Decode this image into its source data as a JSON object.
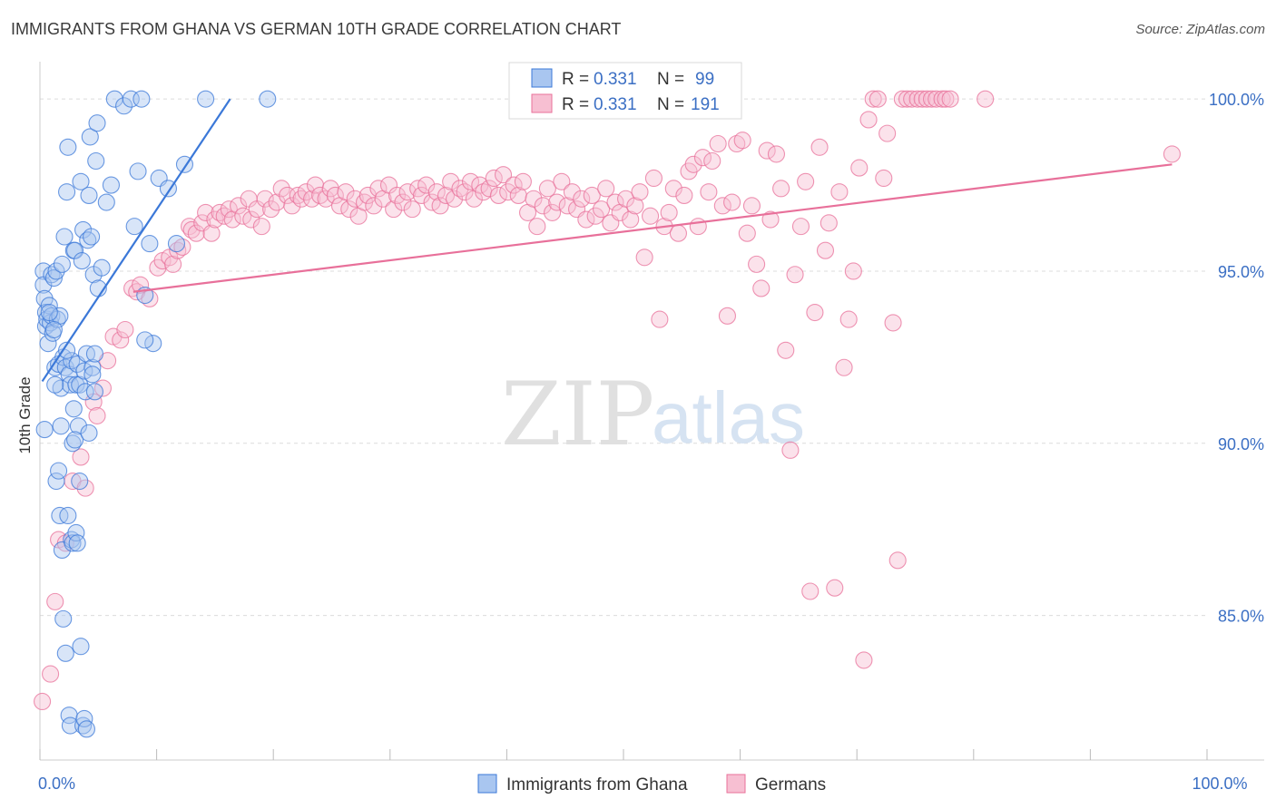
{
  "title": "IMMIGRANTS FROM GHANA VS GERMAN 10TH GRADE CORRELATION CHART",
  "source": "Source: ZipAtlas.com",
  "watermark": {
    "zip": "ZIP",
    "atlas": "atlas"
  },
  "legend": {
    "r_label": "R =",
    "n_label": "N =",
    "rows": [
      {
        "r": "0.331",
        "n": "99",
        "color": "#7aa7e6"
      },
      {
        "r": "0.331",
        "n": "191",
        "color": "#f2a0bc"
      }
    ]
  },
  "chart_data": {
    "type": "scatter",
    "title": "IMMIGRANTS FROM GHANA VS GERMAN 10TH GRADE CORRELATION CHART",
    "xlabel": "",
    "ylabel": "10th Grade",
    "xlim": [
      0,
      100
    ],
    "ylim": [
      80.8,
      100.9
    ],
    "x_tick_labels": [
      {
        "value": 0,
        "label": "0.0%"
      },
      {
        "value": 100,
        "label": "100.0%"
      }
    ],
    "y_ticks": [
      {
        "value": 85,
        "label": "85.0%"
      },
      {
        "value": 90,
        "label": "90.0%"
      },
      {
        "value": 95,
        "label": "95.0%"
      },
      {
        "value": 100,
        "label": "100.0%"
      }
    ],
    "grid": true,
    "legend_placement": "top-center",
    "series": [
      {
        "name": "Immigrants from Ghana",
        "color": "#3b78d8",
        "fill": "#a9c6f0",
        "r": 0.331,
        "n": 99,
        "trend": {
          "x": [
            0.2,
            16.3
          ],
          "y": [
            91.8,
            100.0
          ]
        },
        "points": [
          [
            0.3,
            95.0
          ],
          [
            0.3,
            94.6
          ],
          [
            0.4,
            94.2
          ],
          [
            0.5,
            93.8
          ],
          [
            0.5,
            93.4
          ],
          [
            0.6,
            93.6
          ],
          [
            0.7,
            92.9
          ],
          [
            0.8,
            94.0
          ],
          [
            0.9,
            93.5
          ],
          [
            1.0,
            94.9
          ],
          [
            1.0,
            93.7
          ],
          [
            1.1,
            93.2
          ],
          [
            1.2,
            94.8
          ],
          [
            1.3,
            92.2
          ],
          [
            1.4,
            95.0
          ],
          [
            1.5,
            93.6
          ],
          [
            1.6,
            92.3
          ],
          [
            1.7,
            93.7
          ],
          [
            1.8,
            91.6
          ],
          [
            1.9,
            95.2
          ],
          [
            2.0,
            92.5
          ],
          [
            2.1,
            96.0
          ],
          [
            2.2,
            92.2
          ],
          [
            2.3,
            97.3
          ],
          [
            2.4,
            98.6
          ],
          [
            2.5,
            92.0
          ],
          [
            2.6,
            91.7
          ],
          [
            2.7,
            92.4
          ],
          [
            2.8,
            90.0
          ],
          [
            2.9,
            95.6
          ],
          [
            3.0,
            95.6
          ],
          [
            3.1,
            91.7
          ],
          [
            3.2,
            92.3
          ],
          [
            3.3,
            90.5
          ],
          [
            3.4,
            91.7
          ],
          [
            3.5,
            97.6
          ],
          [
            3.6,
            95.3
          ],
          [
            3.7,
            96.2
          ],
          [
            3.8,
            92.1
          ],
          [
            3.9,
            91.5
          ],
          [
            4.0,
            92.6
          ],
          [
            4.1,
            95.9
          ],
          [
            4.2,
            97.2
          ],
          [
            4.3,
            98.9
          ],
          [
            4.4,
            96.0
          ],
          [
            4.5,
            92.2
          ],
          [
            4.6,
            94.9
          ],
          [
            4.7,
            92.6
          ],
          [
            4.8,
            98.2
          ],
          [
            4.9,
            99.3
          ],
          [
            0.4,
            90.4
          ],
          [
            0.8,
            93.8
          ],
          [
            1.2,
            93.3
          ],
          [
            1.3,
            91.7
          ],
          [
            1.4,
            88.9
          ],
          [
            1.6,
            89.2
          ],
          [
            1.7,
            87.9
          ],
          [
            1.8,
            90.5
          ],
          [
            1.9,
            86.9
          ],
          [
            2.0,
            84.9
          ],
          [
            2.2,
            83.9
          ],
          [
            2.3,
            92.7
          ],
          [
            2.4,
            87.9
          ],
          [
            2.5,
            82.1
          ],
          [
            2.6,
            81.8
          ],
          [
            2.7,
            87.2
          ],
          [
            2.8,
            87.1
          ],
          [
            2.9,
            91.0
          ],
          [
            3.0,
            90.1
          ],
          [
            3.1,
            87.4
          ],
          [
            3.2,
            87.1
          ],
          [
            3.4,
            88.9
          ],
          [
            3.5,
            84.1
          ],
          [
            3.7,
            81.8
          ],
          [
            3.8,
            82.0
          ],
          [
            4.0,
            81.7
          ],
          [
            4.2,
            90.3
          ],
          [
            4.5,
            92.0
          ],
          [
            4.7,
            91.5
          ],
          [
            5.0,
            94.5
          ],
          [
            5.3,
            95.1
          ],
          [
            5.7,
            97.0
          ],
          [
            6.1,
            97.5
          ],
          [
            6.4,
            100.0
          ],
          [
            7.2,
            99.8
          ],
          [
            7.8,
            100.0
          ],
          [
            8.1,
            96.3
          ],
          [
            8.4,
            97.9
          ],
          [
            8.7,
            100.0
          ],
          [
            9.0,
            94.3
          ],
          [
            9.4,
            95.8
          ],
          [
            9.7,
            92.9
          ],
          [
            10.2,
            97.7
          ],
          [
            11.0,
            97.4
          ],
          [
            11.7,
            95.8
          ],
          [
            12.4,
            98.1
          ],
          [
            14.2,
            100.0
          ],
          [
            19.5,
            100.0
          ],
          [
            9.0,
            93.0
          ]
        ]
      },
      {
        "name": "Germans",
        "color": "#e8709a",
        "fill": "#f7bfd2",
        "r": 0.331,
        "n": 191,
        "trend": {
          "x": [
            8.0,
            97.0
          ],
          "y": [
            94.4,
            98.1
          ]
        },
        "points": [
          [
            0.2,
            82.5
          ],
          [
            0.9,
            83.3
          ],
          [
            1.3,
            85.4
          ],
          [
            1.6,
            87.2
          ],
          [
            2.2,
            87.1
          ],
          [
            2.8,
            88.9
          ],
          [
            3.5,
            89.6
          ],
          [
            3.9,
            88.7
          ],
          [
            4.6,
            91.2
          ],
          [
            4.9,
            90.8
          ],
          [
            5.4,
            91.6
          ],
          [
            5.8,
            92.4
          ],
          [
            6.3,
            93.1
          ],
          [
            6.9,
            93.0
          ],
          [
            7.3,
            93.3
          ],
          [
            7.9,
            94.5
          ],
          [
            8.3,
            94.4
          ],
          [
            8.6,
            94.6
          ],
          [
            9.4,
            94.2
          ],
          [
            10.1,
            95.1
          ],
          [
            10.5,
            95.3
          ],
          [
            11.1,
            95.4
          ],
          [
            11.4,
            95.2
          ],
          [
            11.8,
            95.6
          ],
          [
            12.2,
            95.7
          ],
          [
            12.8,
            96.3
          ],
          [
            13.0,
            96.2
          ],
          [
            13.4,
            96.1
          ],
          [
            13.9,
            96.4
          ],
          [
            14.2,
            96.7
          ],
          [
            14.7,
            96.1
          ],
          [
            15.0,
            96.5
          ],
          [
            15.4,
            96.7
          ],
          [
            15.8,
            96.6
          ],
          [
            16.2,
            96.8
          ],
          [
            16.5,
            96.5
          ],
          [
            17.0,
            96.9
          ],
          [
            17.4,
            96.6
          ],
          [
            17.9,
            97.1
          ],
          [
            18.1,
            96.5
          ],
          [
            18.6,
            96.8
          ],
          [
            19.0,
            96.3
          ],
          [
            19.3,
            97.1
          ],
          [
            19.8,
            96.8
          ],
          [
            20.3,
            97.0
          ],
          [
            20.7,
            97.4
          ],
          [
            21.2,
            97.2
          ],
          [
            21.6,
            96.9
          ],
          [
            22.1,
            97.2
          ],
          [
            22.4,
            97.1
          ],
          [
            22.8,
            97.3
          ],
          [
            23.3,
            97.1
          ],
          [
            23.6,
            97.5
          ],
          [
            24.0,
            97.2
          ],
          [
            24.5,
            97.1
          ],
          [
            24.9,
            97.4
          ],
          [
            25.3,
            97.2
          ],
          [
            25.7,
            96.9
          ],
          [
            26.2,
            97.3
          ],
          [
            26.5,
            96.8
          ],
          [
            27.0,
            97.1
          ],
          [
            27.3,
            96.6
          ],
          [
            27.8,
            97.0
          ],
          [
            28.1,
            97.2
          ],
          [
            28.6,
            96.9
          ],
          [
            29.0,
            97.4
          ],
          [
            29.4,
            97.1
          ],
          [
            29.9,
            97.5
          ],
          [
            30.3,
            96.8
          ],
          [
            30.6,
            97.2
          ],
          [
            31.1,
            97.0
          ],
          [
            31.5,
            97.3
          ],
          [
            31.9,
            96.8
          ],
          [
            32.4,
            97.4
          ],
          [
            32.7,
            97.2
          ],
          [
            33.1,
            97.5
          ],
          [
            33.6,
            97.0
          ],
          [
            34.0,
            97.3
          ],
          [
            34.3,
            96.9
          ],
          [
            34.8,
            97.2
          ],
          [
            35.2,
            97.6
          ],
          [
            35.5,
            97.1
          ],
          [
            36.0,
            97.4
          ],
          [
            36.4,
            97.3
          ],
          [
            36.9,
            97.6
          ],
          [
            37.2,
            97.1
          ],
          [
            37.7,
            97.5
          ],
          [
            38.0,
            97.3
          ],
          [
            38.5,
            97.4
          ],
          [
            38.9,
            97.7
          ],
          [
            39.3,
            97.2
          ],
          [
            39.7,
            97.8
          ],
          [
            40.1,
            97.3
          ],
          [
            40.6,
            97.5
          ],
          [
            41.0,
            97.2
          ],
          [
            41.4,
            97.6
          ],
          [
            41.8,
            96.7
          ],
          [
            42.3,
            97.1
          ],
          [
            42.6,
            96.3
          ],
          [
            43.1,
            96.9
          ],
          [
            43.5,
            97.4
          ],
          [
            43.9,
            96.7
          ],
          [
            44.3,
            97.0
          ],
          [
            44.7,
            97.6
          ],
          [
            45.2,
            96.9
          ],
          [
            45.6,
            97.3
          ],
          [
            46.0,
            96.8
          ],
          [
            46.4,
            97.1
          ],
          [
            46.8,
            96.5
          ],
          [
            47.3,
            97.2
          ],
          [
            47.6,
            96.6
          ],
          [
            48.1,
            96.8
          ],
          [
            48.5,
            97.4
          ],
          [
            48.9,
            96.4
          ],
          [
            49.3,
            97.0
          ],
          [
            49.7,
            96.7
          ],
          [
            50.2,
            97.1
          ],
          [
            50.6,
            96.5
          ],
          [
            51.0,
            96.9
          ],
          [
            51.4,
            97.3
          ],
          [
            51.8,
            95.4
          ],
          [
            52.3,
            96.6
          ],
          [
            52.6,
            97.7
          ],
          [
            53.1,
            93.6
          ],
          [
            53.5,
            96.3
          ],
          [
            53.9,
            96.7
          ],
          [
            54.3,
            97.4
          ],
          [
            54.7,
            96.1
          ],
          [
            55.2,
            97.2
          ],
          [
            55.6,
            97.9
          ],
          [
            56.0,
            98.1
          ],
          [
            56.4,
            96.3
          ],
          [
            56.8,
            98.3
          ],
          [
            57.3,
            97.3
          ],
          [
            57.6,
            98.2
          ],
          [
            58.1,
            98.7
          ],
          [
            58.5,
            96.9
          ],
          [
            58.9,
            93.7
          ],
          [
            59.3,
            97.0
          ],
          [
            59.7,
            98.7
          ],
          [
            60.2,
            98.8
          ],
          [
            60.6,
            96.1
          ],
          [
            61.0,
            96.9
          ],
          [
            61.4,
            95.2
          ],
          [
            61.8,
            94.5
          ],
          [
            62.3,
            98.5
          ],
          [
            62.6,
            96.5
          ],
          [
            63.1,
            98.4
          ],
          [
            63.5,
            97.4
          ],
          [
            63.9,
            92.7
          ],
          [
            64.3,
            89.8
          ],
          [
            64.7,
            94.9
          ],
          [
            65.2,
            96.3
          ],
          [
            65.6,
            97.6
          ],
          [
            66.0,
            85.7
          ],
          [
            66.4,
            93.8
          ],
          [
            66.8,
            98.6
          ],
          [
            67.3,
            95.6
          ],
          [
            67.6,
            96.4
          ],
          [
            68.1,
            85.8
          ],
          [
            68.5,
            97.3
          ],
          [
            68.9,
            92.2
          ],
          [
            69.3,
            93.6
          ],
          [
            69.7,
            95.0
          ],
          [
            70.2,
            98.0
          ],
          [
            70.6,
            83.7
          ],
          [
            71.0,
            99.4
          ],
          [
            71.4,
            100.0
          ],
          [
            71.8,
            100.0
          ],
          [
            72.3,
            97.7
          ],
          [
            72.6,
            99.0
          ],
          [
            73.1,
            93.5
          ],
          [
            73.5,
            86.6
          ],
          [
            73.9,
            100.0
          ],
          [
            74.3,
            100.0
          ],
          [
            74.7,
            100.0
          ],
          [
            75.2,
            100.0
          ],
          [
            75.6,
            100.0
          ],
          [
            76.0,
            100.0
          ],
          [
            76.4,
            100.0
          ],
          [
            76.8,
            100.0
          ],
          [
            77.3,
            100.0
          ],
          [
            77.6,
            100.0
          ],
          [
            97.0,
            98.4
          ],
          [
            78.0,
            100.0
          ],
          [
            81.0,
            100.0
          ]
        ]
      }
    ]
  },
  "bottom_legend": [
    {
      "label": "Immigrants from Ghana",
      "color": "#a9c6f0",
      "stroke": "#3b78d8"
    },
    {
      "label": "Germans",
      "color": "#f7bfd2",
      "stroke": "#e8709a"
    }
  ]
}
